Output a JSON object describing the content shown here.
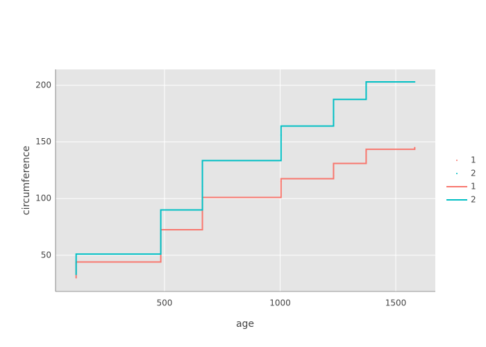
{
  "chart_data": {
    "type": "line",
    "line_shape": "vhv",
    "x_label": "age",
    "y_label": "circumference",
    "x": [
      118,
      484,
      664,
      1004,
      1231,
      1372,
      1582
    ],
    "series": [
      {
        "name": "1",
        "color": "#F8766D",
        "values": [
          30,
          58,
          87,
          115,
          120,
          142,
          145
        ]
      },
      {
        "name": "2",
        "color": "#00BFC4",
        "values": [
          33,
          69,
          111,
          156,
          172,
          203,
          203
        ]
      }
    ],
    "xlim": [
      29,
      1671
    ],
    "ylim": [
      18,
      214
    ],
    "xticks": [
      500,
      1000,
      1500
    ],
    "yticks": [
      50,
      100,
      150,
      200
    ],
    "grid": true,
    "legend": "right"
  }
}
